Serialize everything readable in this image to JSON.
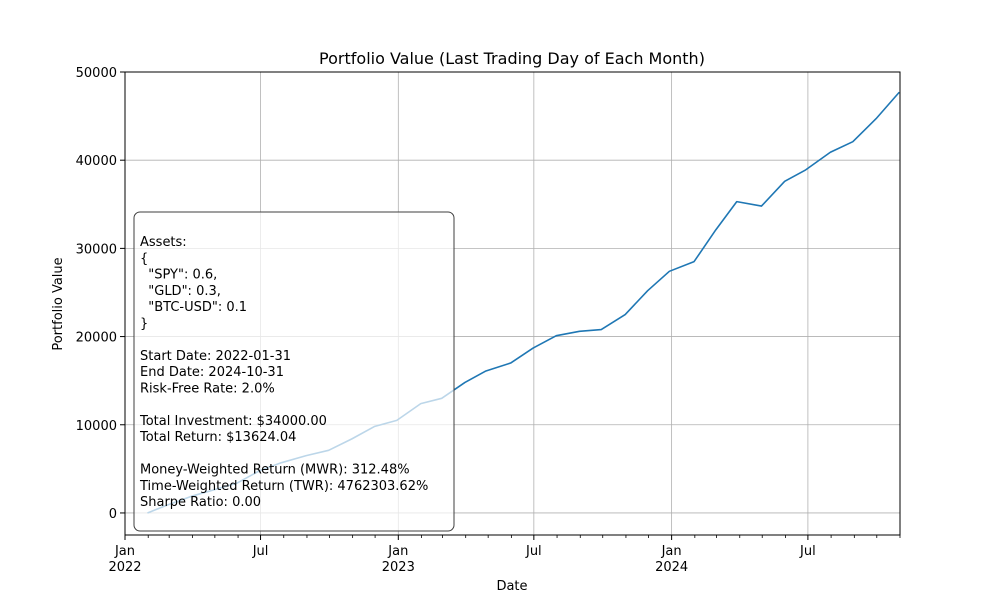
{
  "chart_data": {
    "type": "line",
    "title": "Portfolio Value (Last Trading Day of Each Month)",
    "xlabel": "Date",
    "ylabel": "Portfolio Value",
    "ylim": [
      -2500,
      50000
    ],
    "xlim": [
      "2022-01-01",
      "2024-11-01"
    ],
    "yticks": [
      0,
      10000,
      20000,
      30000,
      40000,
      50000
    ],
    "xticks": [
      {
        "date": "2022-01-01",
        "label": "Jan",
        "year": "2022"
      },
      {
        "date": "2022-07-01",
        "label": "Jul",
        "year": ""
      },
      {
        "date": "2023-01-01",
        "label": "Jan",
        "year": "2023"
      },
      {
        "date": "2023-07-01",
        "label": "Jul",
        "year": ""
      },
      {
        "date": "2024-01-01",
        "label": "Jan",
        "year": "2024"
      },
      {
        "date": "2024-07-01",
        "label": "Jul",
        "year": ""
      }
    ],
    "grid": true,
    "line_color": "#1f77b4",
    "series": [
      {
        "x": [
          "2022-01-31",
          "2022-02-28",
          "2022-03-31",
          "2022-04-29",
          "2022-05-31",
          "2022-06-30",
          "2022-07-29",
          "2022-08-31",
          "2022-09-30",
          "2022-10-31",
          "2022-11-30",
          "2022-12-30",
          "2023-01-31",
          "2023-02-28",
          "2023-03-31",
          "2023-04-28",
          "2023-05-31",
          "2023-06-30",
          "2023-07-31",
          "2023-08-31",
          "2023-09-29",
          "2023-10-31",
          "2023-11-30",
          "2023-12-29",
          "2024-01-31",
          "2024-02-29",
          "2024-03-28",
          "2024-04-30",
          "2024-05-31",
          "2024-06-28",
          "2024-07-31",
          "2024-08-30",
          "2024-09-30",
          "2024-10-31"
        ],
        "y": [
          0,
          950,
          1900,
          2600,
          3400,
          4800,
          5700,
          6500,
          7100,
          8400,
          9800,
          10500,
          12400,
          13000,
          14800,
          16100,
          17000,
          18700,
          20100,
          20600,
          20800,
          22500,
          25200,
          27400,
          28500,
          32100,
          35300,
          34800,
          37600,
          38900,
          40900,
          42100,
          44700,
          47700
        ]
      }
    ]
  },
  "annotation": {
    "lines": [
      "Assets:",
      "{",
      "  \"SPY\": 0.6,",
      "  \"GLD\": 0.3,",
      "  \"BTC-USD\": 0.1",
      "}",
      "",
      "Start Date: 2022-01-31",
      "End Date: 2024-10-31",
      "Risk-Free Rate: 2.0%",
      "",
      "Total Investment: $34000.00",
      "Total Return: $13624.04",
      "",
      "Money-Weighted Return (MWR): 312.48%",
      "Time-Weighted Return (TWR): 4762303.62%",
      "Sharpe Ratio: 0.00"
    ]
  }
}
